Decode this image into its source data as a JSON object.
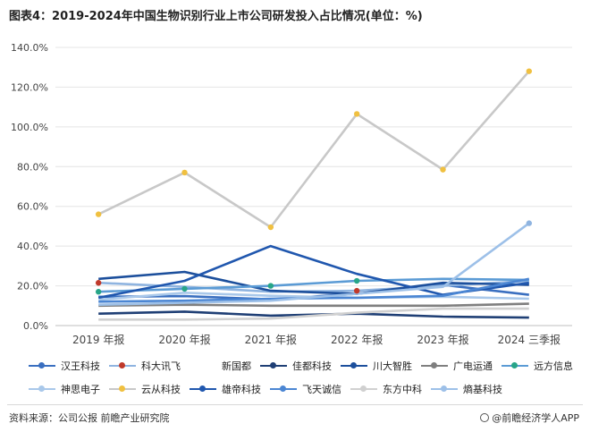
{
  "title": "图表4：2019-2024年中国生物识别行业上市公司研发投入占比情况(单位：%)",
  "source": "资料来源：公司公报 前瞻产业研究院",
  "brand": "@前瞻经济学人APP",
  "chart_data": {
    "type": "line",
    "title": "图表4：2019-2024年中国生物识别行业上市公司研发投入占比情况(单位：%)",
    "categories": [
      "2019 年报",
      "2020 年报",
      "2021 年报",
      "2022 年报",
      "2023 年报",
      "2024 三季报"
    ],
    "ylim": [
      0,
      140
    ],
    "yticks": [
      "0.0%",
      "20.0%",
      "40.0%",
      "60.0%",
      "80.0%",
      "100.0%",
      "120.0%",
      "140.0%"
    ],
    "grid": true,
    "legend_position": "bottom",
    "series": [
      {
        "name": "汉王科技",
        "color": "#3a6fc0",
        "marker": true,
        "values": [
          14.5,
          14.8,
          13.2,
          16.0,
          20.5,
          15.5
        ]
      },
      {
        "name": "科大讯飞",
        "color": "#8fb4e0",
        "marker": true,
        "values": [
          21.5,
          19.5,
          17.0,
          17.5,
          20.0,
          22.5
        ]
      },
      {
        "name": "新国都",
        "color": "#ffffff",
        "marker": false,
        "values": [
          10.0,
          10.0,
          11.0,
          11.0,
          11.0,
          11.0
        ]
      },
      {
        "name": "佳都科技",
        "color": "#1f3f75",
        "marker": true,
        "values": [
          6.0,
          7.0,
          5.0,
          6.0,
          4.5,
          4.0
        ]
      },
      {
        "name": "川大智胜",
        "color": "#1c4f9c",
        "marker": true,
        "values": [
          23.5,
          27.0,
          17.5,
          16.0,
          21.5,
          20.5
        ]
      },
      {
        "name": "广电运通",
        "color": "#7f7f7f",
        "marker": true,
        "values": [
          10.0,
          10.5,
          10.0,
          10.0,
          10.0,
          11.0
        ]
      },
      {
        "name": "远方信息",
        "color": "#5b9bd5",
        "marker": true,
        "values": [
          17.0,
          18.5,
          20.0,
          22.5,
          23.5,
          23.0
        ]
      },
      {
        "name": "神思电子",
        "color": "#a9c8ea",
        "marker": true,
        "values": [
          13.0,
          16.5,
          15.0,
          14.0,
          14.5,
          13.5
        ]
      },
      {
        "name": "云从科技",
        "color": "#c8c8c8",
        "marker": true,
        "values": [
          56.0,
          77.0,
          49.5,
          106.5,
          78.5,
          128.0
        ]
      },
      {
        "name": "雄帝科技",
        "color": "#2057ae",
        "marker": true,
        "values": [
          14.0,
          22.5,
          40.0,
          26.0,
          15.5,
          21.5
        ]
      },
      {
        "name": "飞天诚信",
        "color": "#4b86d3",
        "marker": true,
        "values": [
          12.0,
          12.5,
          13.5,
          14.0,
          15.0,
          23.5
        ]
      },
      {
        "name": "东方中科",
        "color": "#d0d0d0",
        "marker": true,
        "values": [
          3.0,
          3.0,
          3.5,
          6.5,
          8.5,
          8.5
        ]
      },
      {
        "name": "熵基科技",
        "color": "#9dc0e8",
        "marker": true,
        "values": [
          10.5,
          11.5,
          12.5,
          16.0,
          19.5,
          51.5
        ]
      }
    ]
  }
}
